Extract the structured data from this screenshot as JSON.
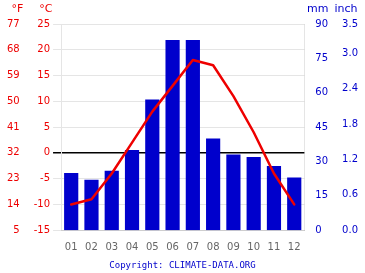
{
  "chart_data": {
    "type": "bar",
    "categories": [
      "01",
      "02",
      "03",
      "04",
      "05",
      "06",
      "07",
      "08",
      "09",
      "10",
      "11",
      "12"
    ],
    "series": [
      {
        "type": "bar",
        "color": "#0000cc",
        "axis": "y2",
        "values": [
          25,
          22,
          26,
          35,
          57,
          83,
          83,
          40,
          33,
          32,
          28,
          23
        ]
      },
      {
        "type": "line",
        "color": "#ee0000",
        "values": [
          -10,
          -9,
          -4,
          2,
          8,
          13,
          18,
          17,
          11,
          4,
          -4,
          -10
        ]
      }
    ],
    "ylim": [
      -15,
      25
    ],
    "yticks": [
      -15,
      -10,
      -5,
      0,
      5,
      10,
      15,
      20,
      25
    ],
    "ylabel": "°C",
    "y2lim": [
      0,
      90
    ],
    "y2ticks": [
      0,
      15,
      30,
      45,
      60,
      75,
      90
    ],
    "y2label": "mm",
    "y3lim": [
      5,
      77
    ],
    "y3ticks": [
      5,
      14,
      23,
      32,
      41,
      50,
      59,
      68,
      77
    ],
    "y3label": "°F",
    "y4lim": [
      0,
      3.5
    ],
    "y4ticks": [
      {
        "value": 0,
        "label": "0.0"
      },
      0.6,
      1.2,
      1.8,
      2.4,
      {
        "value": 3,
        "label": "3.0"
      },
      3.5
    ],
    "y4label": "inch",
    "grid": true,
    "annotations": [
      {
        "text": "Copyright: CLIMATE-DATA.ORG",
        "color": "#0000cc"
      }
    ]
  }
}
